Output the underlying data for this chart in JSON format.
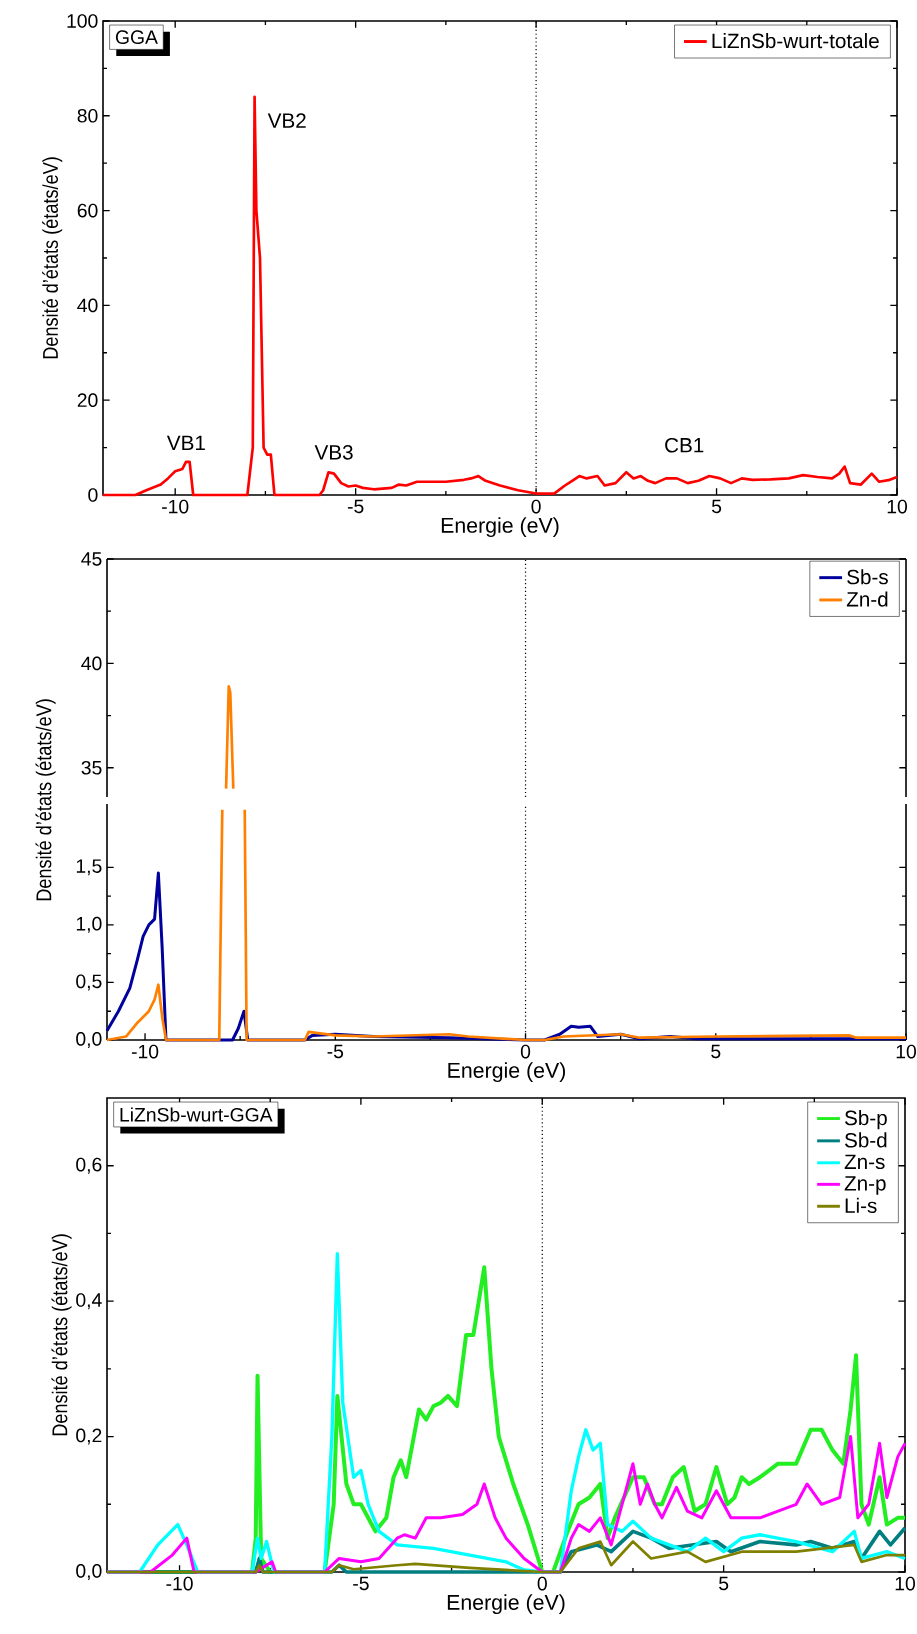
{
  "chart_data": [
    {
      "type": "line",
      "xlabel": "Energie (eV)",
      "ylabel": "Densité d’états (états/eV)",
      "xlim": [
        -12,
        10
      ],
      "ylim": [
        0,
        100
      ],
      "xticks": [
        -10,
        -5,
        0,
        5,
        10
      ],
      "yticks": [
        0,
        20,
        40,
        60,
        80,
        100
      ],
      "legend": "top right",
      "line_style": "solid",
      "annotations": [
        "GGA",
        "VB1",
        "VB2",
        "VB3",
        "CB1"
      ],
      "ref_lines": [
        {
          "axis": "x",
          "value": 0,
          "color": "#000000",
          "line_style": "dotted"
        }
      ],
      "series": [
        {
          "name": "LiZnSb-wurt-totale",
          "color": "#ff0000",
          "x": [
            -12,
            -11.1,
            -10.8,
            -10.4,
            -10.2,
            -10.0,
            -9.8,
            -9.7,
            -9.6,
            -9.5,
            -8.0,
            -7.85,
            -7.8,
            -7.75,
            -7.65,
            -7.55,
            -7.45,
            -7.35,
            -7.25,
            -6.0,
            -5.9,
            -5.75,
            -5.6,
            -5.4,
            -5.2,
            -5.0,
            -4.8,
            -4.5,
            -4.0,
            -3.8,
            -3.6,
            -3.3,
            -3.0,
            -2.5,
            -2.0,
            -1.8,
            -1.6,
            -1.4,
            -1.0,
            -0.5,
            0,
            0.5,
            0.8,
            1.0,
            1.2,
            1.4,
            1.7,
            1.9,
            2.2,
            2.5,
            2.7,
            2.9,
            3.1,
            3.3,
            3.6,
            3.9,
            4.2,
            4.5,
            4.8,
            5.1,
            5.4,
            5.7,
            6.0,
            6.5,
            7.0,
            7.4,
            7.8,
            8.2,
            8.4,
            8.55,
            8.7,
            9.0,
            9.3,
            9.5,
            9.8,
            10
          ],
          "values": [
            0,
            0,
            1,
            2.2,
            3.5,
            5,
            5.5,
            7,
            7,
            0,
            0,
            10,
            84,
            60,
            50,
            10,
            8.5,
            8.5,
            0,
            0,
            1,
            4.8,
            4.5,
            2.5,
            1.8,
            2.0,
            1.5,
            1.2,
            1.5,
            2.2,
            2,
            2.8,
            2.8,
            2.8,
            3.2,
            3.5,
            4,
            3,
            2,
            1,
            0.3,
            0.3,
            2,
            3,
            4,
            3.5,
            4,
            2,
            2.5,
            4.8,
            3.5,
            4,
            3,
            2.5,
            3.5,
            3.5,
            2.5,
            3,
            4,
            3.5,
            2.5,
            3.5,
            3.2,
            3.3,
            3.5,
            4.2,
            3.8,
            3.5,
            4.5,
            6,
            2.5,
            2.2,
            4.5,
            2.8,
            3.2,
            3.8
          ]
        }
      ]
    },
    {
      "type": "line",
      "xlim": [
        -11,
        10
      ],
      "ylim": [
        33.6,
        45
      ],
      "yticks": [
        35,
        40,
        45
      ],
      "tick_labels": "y",
      "line_style": "solid",
      "ref_lines": [
        {
          "axis": "x",
          "value": 0,
          "color": "#000000",
          "line_style": "dotted"
        }
      ],
      "series": [
        {
          "color": "#ff8000",
          "x": [
            -7.87,
            -7.8,
            -7.76,
            -7.68
          ],
          "values": [
            34.0,
            38.9,
            38.6,
            34.0
          ]
        }
      ]
    },
    {
      "type": "line",
      "xlabel": "Energie (eV)",
      "ylabel": "Densité d’états (états/eV)",
      "xlim": [
        -11,
        10
      ],
      "ylim": [
        0,
        2.05
      ],
      "xticks": [
        -10,
        -5,
        0,
        5,
        10
      ],
      "yticks": [
        {
          "value": 0,
          "label": "0,0"
        },
        {
          "value": 0.5,
          "label": "0,5"
        },
        {
          "value": 1.0,
          "label": "1,0"
        },
        {
          "value": 1.5,
          "label": "1,5"
        }
      ],
      "legend": "top right",
      "line_style": "solid",
      "ref_lines": [
        {
          "axis": "x",
          "value": 0,
          "color": "#000000",
          "line_style": "dotted"
        }
      ],
      "series": [
        {
          "name": "Sb-s",
          "color": "#00009c",
          "x": [
            -11,
            -10.7,
            -10.4,
            -10.2,
            -10.05,
            -9.9,
            -9.75,
            -9.65,
            -9.55,
            -9.45,
            -7.7,
            -7.55,
            -7.4,
            -7.3,
            -5.8,
            -5.6,
            -5.0,
            -4.0,
            -2.0,
            0,
            0.5,
            0.9,
            1.2,
            1.4,
            1.7,
            1.9,
            2.5,
            3,
            3.8,
            4.5,
            10
          ],
          "values": [
            0.08,
            0.25,
            0.45,
            0.7,
            0.9,
            1.0,
            1.05,
            1.45,
            0.8,
            0,
            0,
            0.1,
            0.25,
            0,
            0,
            0.04,
            0.05,
            0.03,
            0.02,
            0,
            0,
            0.05,
            0.12,
            0.11,
            0.12,
            0.03,
            0.05,
            0.01,
            0.03,
            0.01,
            0.01
          ]
        },
        {
          "name": "Zn-d",
          "color": "#ff8000",
          "x": [
            -11,
            -10.5,
            -10.2,
            -9.9,
            -9.75,
            -9.65,
            -9.55,
            -9.45,
            -8.05,
            -7.97,
            -7.9,
            -7.4,
            -7.38,
            -7.33,
            -5.8,
            -5.7,
            -5.0,
            -4,
            -2,
            -1.5,
            0,
            0.5,
            1,
            2.5,
            3,
            5,
            8.5,
            8.7,
            10
          ],
          "values": [
            0,
            0.03,
            0.15,
            0.25,
            0.35,
            0.48,
            0.2,
            0,
            0,
            2.0,
            null,
            null,
            2.0,
            0,
            0,
            0.07,
            0.04,
            0.03,
            0.05,
            0.03,
            0,
            0,
            0.03,
            0.05,
            0.02,
            0.03,
            0.04,
            0.02,
            0.02
          ]
        }
      ]
    },
    {
      "type": "line",
      "xlabel": "Energie (eV)",
      "ylabel": "Densité d’états (états/eV)",
      "xlim": [
        -12,
        10
      ],
      "ylim": [
        0,
        0.7
      ],
      "xticks": [
        -10,
        -5,
        0,
        5,
        10
      ],
      "yticks": [
        {
          "value": 0,
          "label": "0,0"
        },
        {
          "value": 0.2,
          "label": "0,2"
        },
        {
          "value": 0.4,
          "label": "0,4"
        },
        {
          "value": 0.6,
          "label": "0,6"
        }
      ],
      "legend": "top right",
      "line_style": "solid",
      "annotations": [
        "LiZnSb-wurt-GGA"
      ],
      "ref_lines": [
        {
          "axis": "x",
          "value": 0,
          "color": "#000000",
          "line_style": "dotted"
        }
      ],
      "series": [
        {
          "name": "Sb-p",
          "color": "#22ee22",
          "x": [
            -12,
            -8,
            -7.9,
            -7.85,
            -7.75,
            -7.5,
            -6,
            -5.75,
            -5.65,
            -5.4,
            -5.2,
            -5.0,
            -4.6,
            -4.3,
            -4.1,
            -3.9,
            -3.75,
            -3.4,
            -3.2,
            -3.0,
            -2.8,
            -2.6,
            -2.35,
            -2.1,
            -1.9,
            -1.6,
            -1.4,
            -1.2,
            -0.8,
            -0.4,
            0,
            0.3,
            0.7,
            1.0,
            1.3,
            1.6,
            1.8,
            2.0,
            2.5,
            2.8,
            3.1,
            3.3,
            3.6,
            3.9,
            4.2,
            4.5,
            4.8,
            5.1,
            5.3,
            5.5,
            5.7,
            6.0,
            6.5,
            7.0,
            7.4,
            7.7,
            8.0,
            8.3,
            8.5,
            8.65,
            8.8,
            9.0,
            9.3,
            9.5,
            9.8,
            10
          ],
          "values": [
            0,
            0,
            0.05,
            0.29,
            0.02,
            0,
            0,
            0.1,
            0.26,
            0.13,
            0.1,
            0.1,
            0.06,
            0.08,
            0.14,
            0.165,
            0.14,
            0.24,
            0.225,
            0.245,
            0.25,
            0.26,
            0.245,
            0.35,
            0.35,
            0.45,
            0.3,
            0.2,
            0.13,
            0.07,
            0,
            0,
            0.06,
            0.1,
            0.11,
            0.13,
            0.05,
            0.08,
            0.14,
            0.14,
            0.1,
            0.1,
            0.14,
            0.155,
            0.09,
            0.1,
            0.155,
            0.1,
            0.11,
            0.14,
            0.13,
            0.14,
            0.16,
            0.16,
            0.21,
            0.21,
            0.18,
            0.16,
            0.24,
            0.32,
            0.1,
            0.07,
            0.14,
            0.07,
            0.08,
            0.08
          ]
        },
        {
          "name": "Sb-d",
          "color": "#007f80",
          "x": [
            -12,
            -7.9,
            -7.8,
            -7.7,
            -5.8,
            -5.6,
            -5.4,
            0.5,
            0.8,
            1.5,
            1.9,
            2.5,
            3.0,
            3.5,
            4.8,
            5.2,
            6,
            7,
            7.4,
            8,
            8.6,
            8.8,
            9.3,
            9.6,
            10
          ],
          "values": [
            0,
            0,
            0.02,
            0,
            0,
            0.01,
            0,
            0,
            0.03,
            0.04,
            0.03,
            0.06,
            0.05,
            0.035,
            0.045,
            0.03,
            0.045,
            0.04,
            0.045,
            0.035,
            0.045,
            0.02,
            0.06,
            0.04,
            0.065
          ]
        },
        {
          "name": "Zn-s",
          "color": "#00ffff",
          "x": [
            -12,
            -11.1,
            -10.6,
            -10.05,
            -9.8,
            -9.5,
            -8,
            -7.85,
            -7.75,
            -7.6,
            -7.4,
            -6,
            -5.8,
            -5.65,
            -5.5,
            -5.2,
            -5.0,
            -4.8,
            -4.5,
            -4.0,
            -3.0,
            -2.0,
            -1.0,
            -0.5,
            0,
            0.5,
            0.8,
            1.0,
            1.2,
            1.4,
            1.6,
            1.8,
            2.2,
            2.5,
            3,
            3.5,
            4,
            4.5,
            5.0,
            5.5,
            6,
            7,
            8,
            8.6,
            8.8,
            9.5,
            10
          ],
          "values": [
            0,
            0,
            0.04,
            0.07,
            0.04,
            0,
            0,
            0.05,
            0.02,
            0.045,
            0,
            0,
            0.2,
            0.47,
            0.25,
            0.14,
            0.15,
            0.1,
            0.06,
            0.04,
            0.035,
            0.025,
            0.015,
            0.003,
            0,
            0,
            0.12,
            0.17,
            0.21,
            0.18,
            0.19,
            0.07,
            0.06,
            0.075,
            0.05,
            0.04,
            0.03,
            0.05,
            0.03,
            0.05,
            0.055,
            0.045,
            0.03,
            0.06,
            0.02,
            0.03,
            0.02
          ]
        },
        {
          "name": "Zn-p",
          "color": "#ff00ff",
          "x": [
            -12,
            -10.8,
            -10.2,
            -9.8,
            -9.6,
            -7.9,
            -7.6,
            -7.45,
            -7.35,
            -6,
            -5.6,
            -5,
            -4.5,
            -4.0,
            -3.8,
            -3.5,
            -3.2,
            -2.8,
            -2.2,
            -1.8,
            -1.6,
            -1.3,
            -1.0,
            -0.5,
            0,
            0.5,
            0.8,
            1.0,
            1.3,
            1.6,
            1.9,
            2.2,
            2.5,
            2.7,
            2.9,
            3.1,
            3.3,
            3.7,
            4.0,
            4.4,
            4.8,
            5.2,
            5.6,
            6.0,
            6.5,
            7.0,
            7.3,
            7.7,
            8.2,
            8.5,
            8.7,
            9.0,
            9.3,
            9.5,
            9.8,
            10
          ],
          "values": [
            0,
            0,
            0.025,
            0.05,
            0,
            0,
            0.01,
            0.015,
            0,
            0,
            0.02,
            0.015,
            0.02,
            0.05,
            0.055,
            0.05,
            0.08,
            0.08,
            0.085,
            0.1,
            0.13,
            0.08,
            0.05,
            0.02,
            0,
            0,
            0.05,
            0.07,
            0.06,
            0.08,
            0.04,
            0.1,
            0.16,
            0.1,
            0.13,
            0.1,
            0.08,
            0.125,
            0.09,
            0.08,
            0.12,
            0.08,
            0.08,
            0.08,
            0.09,
            0.1,
            0.13,
            0.1,
            0.11,
            0.2,
            0.08,
            0.1,
            0.19,
            0.11,
            0.17,
            0.19
          ]
        },
        {
          "name": "Li-s",
          "color": "#808000",
          "x": [
            -12,
            -7.9,
            -7.8,
            -7.7,
            -5.8,
            -5.6,
            -5.2,
            -4,
            -3.5,
            -2,
            0,
            0.5,
            1.0,
            1.6,
            1.9,
            2.5,
            3,
            4,
            4.5,
            5.5,
            7,
            8.6,
            8.8,
            9.5,
            10
          ],
          "values": [
            0,
            0,
            0.01,
            0,
            0,
            0.01,
            0.004,
            0.01,
            0.012,
            0.006,
            0,
            0,
            0.035,
            0.045,
            0.01,
            0.045,
            0.02,
            0.03,
            0.015,
            0.03,
            0.03,
            0.04,
            0.015,
            0.025,
            0.025
          ]
        }
      ]
    }
  ]
}
